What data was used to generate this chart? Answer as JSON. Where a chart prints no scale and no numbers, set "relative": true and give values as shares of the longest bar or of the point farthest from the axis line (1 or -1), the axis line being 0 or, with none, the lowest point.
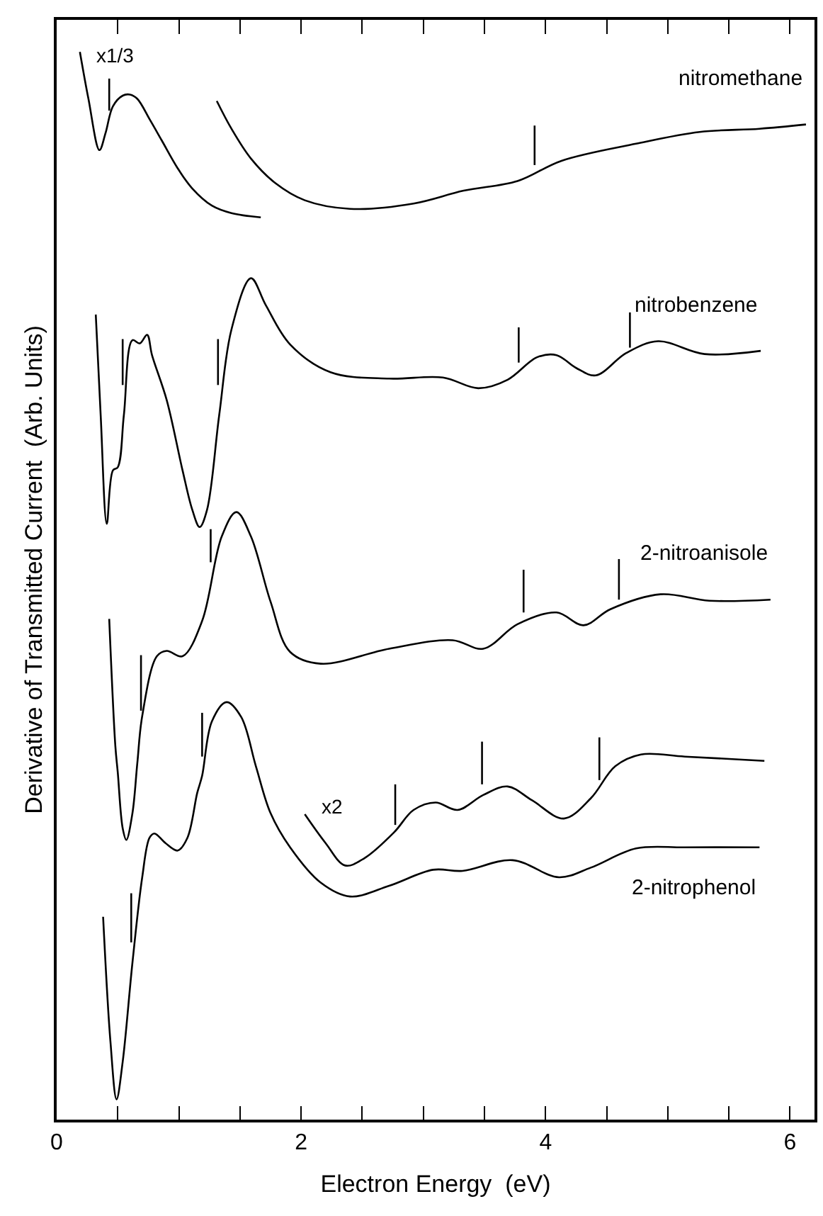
{
  "chart_data": {
    "type": "line",
    "relative": true,
    "xlabel": "Electron Energy  (eV)",
    "ylabel": "Derivative of Transmitted Current  (Arb. Units)",
    "xlim": [
      0,
      6.2
    ],
    "xticks": [
      0,
      {
        "value": 0.5,
        "label": null
      },
      {
        "value": 1,
        "label": null
      },
      {
        "value": 1.5,
        "label": null
      },
      2,
      {
        "value": 2.5,
        "label": null
      },
      {
        "value": 3,
        "label": null
      },
      {
        "value": 3.5,
        "label": null
      },
      4,
      {
        "value": 4.5,
        "label": null
      },
      {
        "value": 5,
        "label": null
      },
      {
        "value": 5.5,
        "label": null
      },
      6
    ],
    "legend": false,
    "tick_labels": "x",
    "marker": "none",
    "line_style": "solid",
    "series": [
      {
        "color": "#000000",
        "x": [
          0.19,
          0.26,
          0.35,
          0.4,
          0.46,
          0.54,
          0.6,
          0.66,
          0.76,
          0.86,
          0.99,
          1.11,
          1.27,
          1.43,
          1.67
        ],
        "values": [
          1.0,
          0.956,
          0.908,
          0.924,
          0.949,
          0.959,
          0.96,
          0.956,
          0.937,
          0.917,
          0.891,
          0.872,
          0.856,
          0.849,
          0.845
        ]
      },
      {
        "name": "nitromethane",
        "color": "#000000",
        "x": [
          1.31,
          1.43,
          1.59,
          1.79,
          2.03,
          2.4,
          2.92,
          3.33,
          3.77,
          4.13,
          4.74,
          5.26,
          5.75,
          6.13
        ],
        "values": [
          0.954,
          0.928,
          0.9,
          0.877,
          0.861,
          0.853,
          0.858,
          0.87,
          0.879,
          0.898,
          0.914,
          0.925,
          0.928,
          0.932
        ]
      },
      {
        "name": "nitrobenzene",
        "color": "#000000",
        "x": [
          0.32,
          0.36,
          0.41,
          0.46,
          0.5,
          0.55,
          0.62,
          0.68,
          0.74,
          0.78,
          0.9,
          1.03,
          1.11,
          1.17,
          1.23,
          1.33,
          1.43,
          1.59,
          1.71,
          1.91,
          2.24,
          2.72,
          3.16,
          3.45,
          3.69,
          3.93,
          4.09,
          4.25,
          4.41,
          4.66,
          4.92,
          5.3,
          5.76
        ],
        "values": [
          0.754,
          0.66,
          0.558,
          0.608,
          0.611,
          0.66,
          0.73,
          0.727,
          0.735,
          0.716,
          0.674,
          0.608,
          0.571,
          0.555,
          0.571,
          0.66,
          0.74,
          0.788,
          0.763,
          0.726,
          0.7,
          0.694,
          0.695,
          0.685,
          0.693,
          0.714,
          0.716,
          0.704,
          0.697,
          0.718,
          0.729,
          0.717,
          0.72
        ]
      },
      {
        "name": "2-nitroanisole",
        "color": "#000000",
        "x": [
          0.43,
          0.48,
          0.5,
          0.54,
          0.57,
          0.62,
          0.66,
          0.7,
          0.82,
          0.9,
          1.03,
          1.19,
          1.35,
          1.47,
          1.59,
          1.75,
          1.91,
          2.16,
          2.72,
          3.24,
          3.49,
          3.77,
          4.09,
          4.31,
          4.53,
          4.94,
          5.34,
          5.84
        ],
        "values": [
          0.469,
          0.35,
          0.325,
          0.273,
          0.262,
          0.287,
          0.334,
          0.378,
          0.434,
          0.439,
          0.434,
          0.467,
          0.546,
          0.569,
          0.546,
          0.485,
          0.438,
          0.427,
          0.441,
          0.449,
          0.441,
          0.464,
          0.475,
          0.463,
          0.478,
          0.492,
          0.486,
          0.487
        ]
      },
      {
        "color": "#000000",
        "x": [
          2.03,
          2.2,
          2.36,
          2.52,
          2.76,
          2.92,
          3.1,
          3.28,
          3.49,
          3.69,
          3.89,
          4.15,
          4.37,
          4.57,
          4.78,
          5.14,
          5.79
        ],
        "values": [
          0.286,
          0.259,
          0.238,
          0.245,
          0.269,
          0.29,
          0.297,
          0.29,
          0.304,
          0.312,
          0.299,
          0.282,
          0.301,
          0.331,
          0.342,
          0.34,
          0.336
        ]
      },
      {
        "name": "2-nitrophenol",
        "color": "#000000",
        "x": [
          0.38,
          0.44,
          0.49,
          0.54,
          0.62,
          0.7,
          0.76,
          0.8,
          0.89,
          0.99,
          1.07,
          1.15,
          1.19,
          1.27,
          1.39,
          1.51,
          1.63,
          1.75,
          1.91,
          2.16,
          2.4,
          2.72,
          3.08,
          3.32,
          3.73,
          4.11,
          4.37,
          4.74,
          5.14,
          5.75
        ],
        "values": [
          0.19,
          0.073,
          0.019,
          0.054,
          0.147,
          0.227,
          0.264,
          0.268,
          0.259,
          0.252,
          0.264,
          0.306,
          0.322,
          0.373,
          0.391,
          0.377,
          0.331,
          0.287,
          0.255,
          0.222,
          0.209,
          0.219,
          0.234,
          0.233,
          0.243,
          0.227,
          0.236,
          0.254,
          0.255,
          0.255
        ]
      },
      {
        "color": "#000000",
        "x": [
          0.43,
          0.43,
          null,
          3.91,
          3.91,
          null,
          0.54,
          0.54,
          null,
          1.32,
          1.32,
          null,
          3.78,
          3.78,
          null,
          4.69,
          4.69,
          null,
          1.26,
          1.26,
          null,
          3.82,
          3.82,
          null,
          4.6,
          4.6,
          null,
          0.69,
          0.69,
          null,
          1.19,
          1.19,
          null,
          3.48,
          3.48,
          null,
          4.44,
          4.44,
          null,
          2.77,
          2.77,
          null,
          0.61,
          0.61
        ],
        "values": [
          0.975,
          0.945,
          null,
          0.931,
          0.894,
          null,
          0.731,
          0.688,
          null,
          0.731,
          0.688,
          null,
          0.742,
          0.709,
          null,
          0.756,
          0.723,
          null,
          0.553,
          0.522,
          null,
          0.515,
          0.475,
          null,
          0.525,
          0.487,
          null,
          0.435,
          0.383,
          null,
          0.381,
          0.34,
          null,
          0.354,
          0.314,
          null,
          0.358,
          0.318,
          null,
          0.314,
          0.276,
          null,
          0.212,
          0.166
        ]
      }
    ],
    "annotations": [
      "x1/3",
      "x2"
    ]
  }
}
